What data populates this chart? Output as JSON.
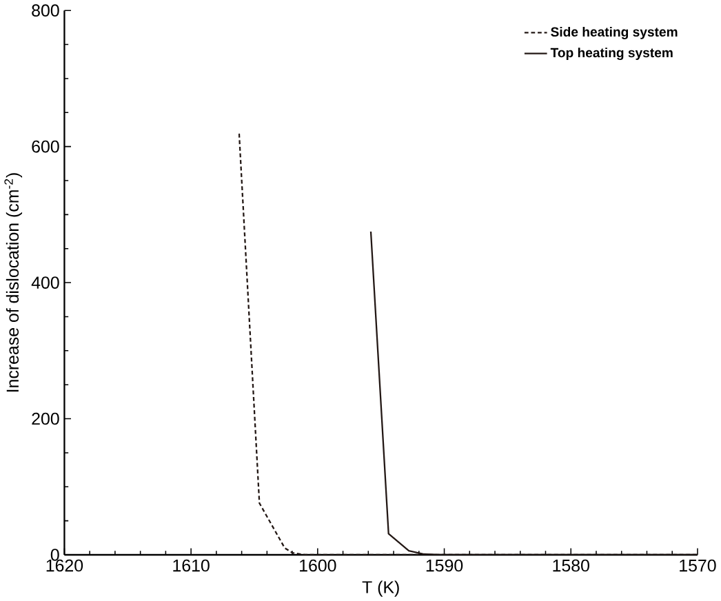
{
  "chart_data": {
    "type": "line",
    "xlabel": "T (K)",
    "ylabel": "Increase of dislocation (cm$^{-2}$)",
    "xlim": [
      1620,
      1570
    ],
    "xticks": [
      1620,
      1610,
      1600,
      1590,
      1580,
      1570
    ],
    "ylim": [
      0,
      800
    ],
    "yticks": [
      0,
      200,
      400,
      600,
      800
    ],
    "grid": false,
    "legend": "top right",
    "marker": "none",
    "series": [
      {
        "name": "Side heating system",
        "color": "#231815",
        "line_style": "dashed",
        "x": [
          1606.2,
          1604.6,
          1602.6,
          1602.0,
          1601.0,
          1570
        ],
        "values": [
          619,
          76,
          10,
          3,
          0,
          0
        ]
      },
      {
        "name": "Top heating system",
        "color": "#231815",
        "line_style": "solid",
        "x": [
          1595.8,
          1594.4,
          1592.8,
          1591.6,
          1590.5,
          1570
        ],
        "values": [
          475,
          31,
          6,
          1,
          0,
          0
        ]
      }
    ]
  }
}
